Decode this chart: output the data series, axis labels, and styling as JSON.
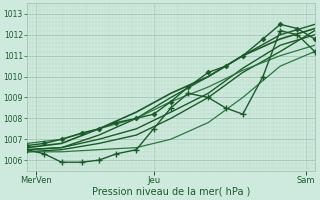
{
  "xlabel": "Pression niveau de la mer( hPa )",
  "background_color": "#ceeade",
  "grid_color_major": "#9dbfad",
  "grid_color_minor": "#b8d9c8",
  "line_color_dark": "#1a5c28",
  "line_color_mid": "#2a7a3a",
  "ylim": [
    1005.5,
    1013.5
  ],
  "xlim": [
    0,
    1
  ],
  "xtick_labels": [
    "MerVen",
    "Jeu",
    "Sam"
  ],
  "xtick_positions": [
    0.03,
    0.44,
    0.97
  ],
  "ytick_vals": [
    1006,
    1007,
    1008,
    1009,
    1010,
    1011,
    1012,
    1013
  ],
  "lines": [
    {
      "x": [
        0.0,
        0.12,
        0.25,
        0.38,
        0.5,
        0.63,
        0.75,
        0.88,
        1.0
      ],
      "y": [
        1006.5,
        1006.6,
        1007.0,
        1007.5,
        1008.3,
        1009.2,
        1010.4,
        1011.5,
        1012.0
      ],
      "marker": null,
      "lw": 1.0,
      "color": "#1a5c28"
    },
    {
      "x": [
        0.0,
        0.12,
        0.25,
        0.38,
        0.5,
        0.63,
        0.75,
        0.88,
        1.0
      ],
      "y": [
        1006.4,
        1006.5,
        1006.8,
        1007.2,
        1008.0,
        1009.0,
        1010.2,
        1011.2,
        1012.2
      ],
      "marker": null,
      "lw": 1.0,
      "color": "#1a5c28"
    },
    {
      "x": [
        0.0,
        0.12,
        0.25,
        0.38,
        0.5,
        0.63,
        0.75,
        0.88,
        1.0
      ],
      "y": [
        1006.5,
        1006.6,
        1007.2,
        1008.0,
        1009.0,
        1010.0,
        1011.0,
        1012.0,
        1012.5
      ],
      "marker": null,
      "lw": 1.0,
      "color": "#1a5c28"
    },
    {
      "x": [
        0.0,
        0.12,
        0.25,
        0.38,
        0.5,
        0.63,
        0.75,
        0.88,
        1.0
      ],
      "y": [
        1006.6,
        1006.8,
        1007.5,
        1008.3,
        1009.2,
        1010.0,
        1011.0,
        1011.8,
        1012.3
      ],
      "marker": null,
      "lw": 1.2,
      "color": "#1a5c28"
    },
    {
      "x": [
        0.0,
        0.12,
        0.25,
        0.38,
        0.5,
        0.63,
        0.75,
        0.88,
        1.0
      ],
      "y": [
        1006.8,
        1007.0,
        1007.5,
        1008.0,
        1008.8,
        1009.5,
        1010.3,
        1011.0,
        1011.5
      ],
      "marker": null,
      "lw": 0.9,
      "color": "#2a7a3a"
    },
    {
      "x": [
        0.0,
        0.12,
        0.25,
        0.38,
        0.5,
        0.63,
        0.75,
        0.88,
        1.0
      ],
      "y": [
        1006.4,
        1006.4,
        1006.5,
        1006.6,
        1007.0,
        1007.8,
        1009.0,
        1010.5,
        1011.2
      ],
      "marker": null,
      "lw": 0.9,
      "color": "#2a7a3a"
    },
    {
      "x": [
        0.0,
        0.06,
        0.12,
        0.19,
        0.25,
        0.31,
        0.38,
        0.44,
        0.5,
        0.56,
        0.63,
        0.69,
        0.75,
        0.82,
        0.88,
        0.94,
        1.0
      ],
      "y": [
        1006.5,
        1006.3,
        1005.9,
        1005.9,
        1006.0,
        1006.3,
        1006.5,
        1007.5,
        1008.5,
        1009.2,
        1009.0,
        1008.5,
        1008.2,
        1010.0,
        1012.2,
        1012.0,
        1011.2
      ],
      "marker": "+",
      "lw": 1.0,
      "color": "#1a5c28"
    },
    {
      "x": [
        0.0,
        0.06,
        0.12,
        0.19,
        0.25,
        0.31,
        0.38,
        0.44,
        0.5,
        0.56,
        0.63,
        0.69,
        0.75,
        0.82,
        0.88,
        0.94,
        1.0
      ],
      "y": [
        1006.7,
        1006.8,
        1007.0,
        1007.3,
        1007.5,
        1007.8,
        1008.0,
        1008.2,
        1008.8,
        1009.5,
        1010.2,
        1010.5,
        1011.0,
        1011.8,
        1012.5,
        1012.3,
        1011.8
      ],
      "marker": "D",
      "lw": 1.0,
      "color": "#1a5c28"
    }
  ]
}
